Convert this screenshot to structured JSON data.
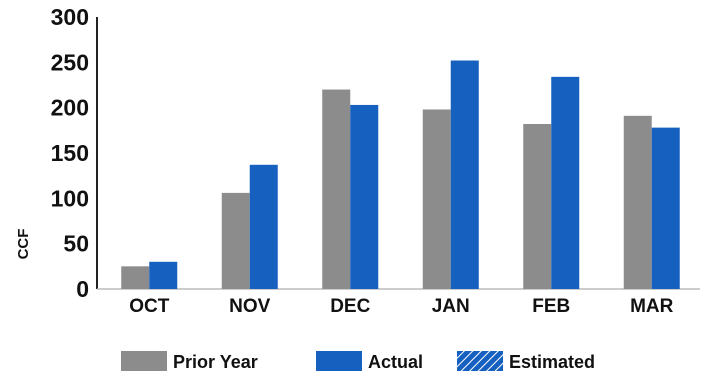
{
  "chart_data": {
    "type": "bar",
    "ylabel": "CCF",
    "categories": [
      "OCT",
      "NOV",
      "DEC",
      "JAN",
      "FEB",
      "MAR"
    ],
    "ylim": [
      0,
      300
    ],
    "yticks": [
      0,
      50,
      100,
      150,
      200,
      250,
      300
    ],
    "grid": false,
    "legend_position": "bottom",
    "series": [
      {
        "name": "Prior Year",
        "values": [
          25,
          106,
          220,
          198,
          182,
          191
        ],
        "color": "#8c8c8c"
      },
      {
        "name": "Actual",
        "values": [
          30,
          137,
          203,
          252,
          234,
          178
        ],
        "color": "#1660c0"
      },
      {
        "name": "Estimated",
        "values": [
          0,
          0,
          0,
          0,
          0,
          0
        ],
        "color": "#1660c0",
        "pattern": "diagonal-hatch"
      }
    ]
  }
}
